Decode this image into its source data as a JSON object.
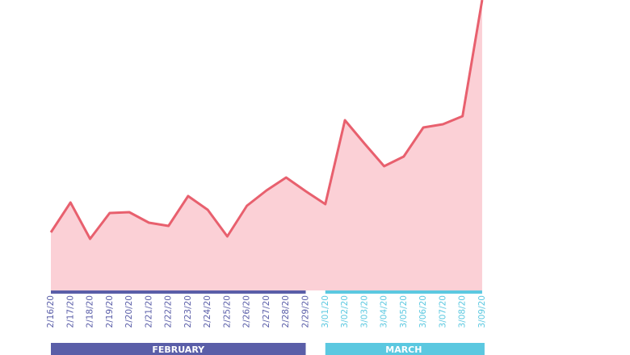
{
  "chart_data": {
    "type": "area",
    "line_color": "#e8606e",
    "fill_color": "#fbd0d6",
    "ylim": [
      0,
      360
    ],
    "months": [
      {
        "label": "FEBRUARY",
        "color": "#5a5ea8",
        "categories": [
          "2/16/20",
          "2/17/20",
          "2/18/20",
          "2/19/20",
          "2/20/20",
          "2/21/20",
          "2/22/20",
          "2/23/20",
          "2/24/20",
          "2/25/20",
          "2/26/20",
          "2/27/20",
          "2/28/20",
          "2/29/20"
        ],
        "values": [
          72,
          109,
          64,
          96,
          97,
          84,
          80,
          117,
          100,
          67,
          105,
          124,
          140,
          123
        ]
      },
      {
        "label": "MARCH",
        "color": "#5bc8e0",
        "categories": [
          "3/01/20",
          "3/02/20",
          "3/03/20",
          "3/04/20",
          "3/05/20",
          "3/06/20",
          "3/07/20",
          "3/08/20",
          "3/09/20"
        ],
        "values": [
          107,
          211,
          182,
          154,
          166,
          202,
          206,
          216,
          360
        ]
      }
    ]
  }
}
